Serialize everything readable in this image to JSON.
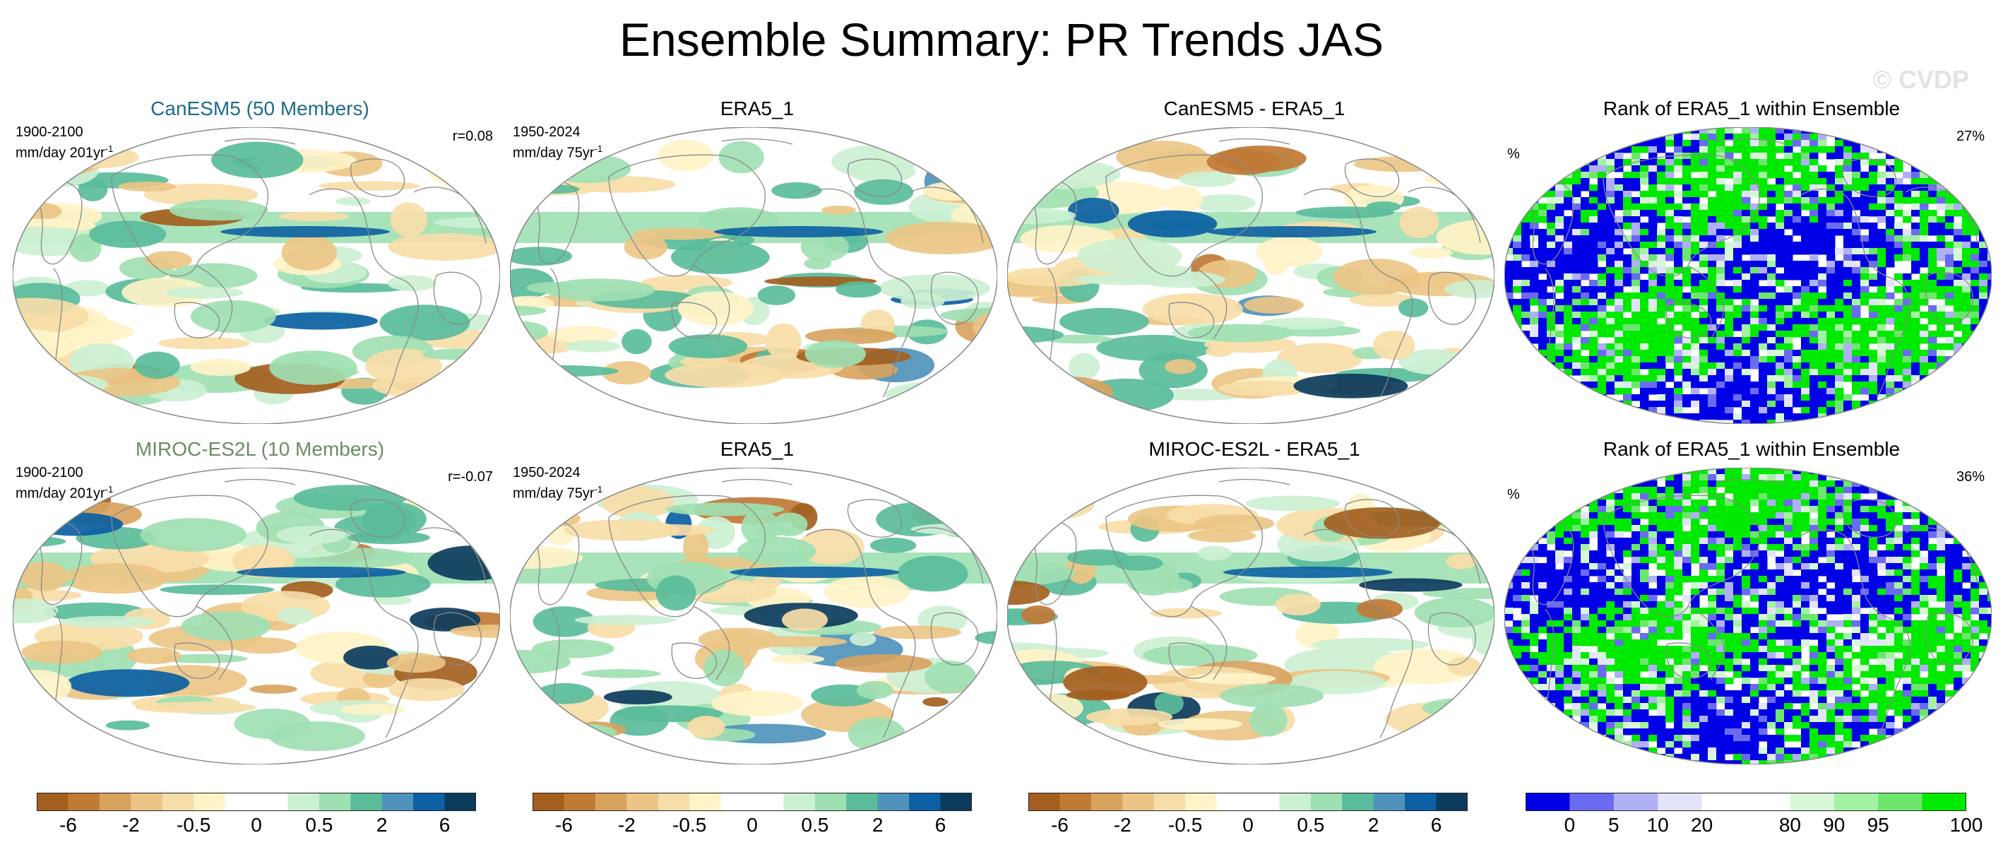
{
  "page_title": "Ensemble Summary: PR Trends JAS",
  "watermark": "© CVDP",
  "colors": {
    "canesm_title": "#1e6b8c",
    "miroc_title": "#6b8c62",
    "map_outline": "#888888",
    "coastline": "#8a8a8a"
  },
  "trend_scale_colors": [
    "#a35f1f",
    "#c07a36",
    "#d8a35f",
    "#ecc586",
    "#f7dda8",
    "#fff3c7",
    "#ffffff",
    "#ffffff",
    "#ccf0d2",
    "#9fe0b2",
    "#5abc9b",
    "#4f93bc",
    "#0b5fa2",
    "#0c3b5c"
  ],
  "rank_scale_colors": [
    "#0000e6",
    "#6b6bf2",
    "#b0b0f6",
    "#e3e3fb",
    "#ffffff",
    "#ffffff",
    "#d7f7d7",
    "#a3f2a3",
    "#6ce66c",
    "#00ea00"
  ],
  "rows": [
    {
      "panels": [
        {
          "title": "CanESM5 (50 Members)",
          "left_label_1": "1900-2100",
          "left_label_2": "mm/day 201yr",
          "superscript": "-1",
          "right_label": "r=0.08"
        },
        {
          "title": "ERA5_1",
          "left_label_1": "1950-2024",
          "left_label_2": "mm/day 75yr",
          "superscript": "-1",
          "right_label": ""
        },
        {
          "title": "CanESM5 - ERA5_1",
          "left_label_1": "",
          "left_label_2": "",
          "superscript": "",
          "right_label": ""
        },
        {
          "title": "Rank of ERA5_1 within Ensemble",
          "left_label_1": "",
          "left_label_2": "%",
          "superscript": "",
          "right_label": "27%"
        }
      ]
    },
    {
      "panels": [
        {
          "title": "MIROC-ES2L (10 Members)",
          "left_label_1": "1900-2100",
          "left_label_2": "mm/day 201yr",
          "superscript": "-1",
          "right_label": "r=-0.07"
        },
        {
          "title": "ERA5_1",
          "left_label_1": "1950-2024",
          "left_label_2": "mm/day 75yr",
          "superscript": "-1",
          "right_label": ""
        },
        {
          "title": "MIROC-ES2L - ERA5_1",
          "left_label_1": "",
          "left_label_2": "",
          "superscript": "",
          "right_label": ""
        },
        {
          "title": "Rank of ERA5_1 within Ensemble",
          "left_label_1": "",
          "left_label_2": "%",
          "superscript": "",
          "right_label": "36%"
        }
      ]
    }
  ],
  "chart_data": {
    "type": "heatmap",
    "title": "Ensemble Summary: PR Trends JAS",
    "projection": "Robinson (global)",
    "panels": [
      {
        "title": "CanESM5 (50 Members)",
        "period": "1900-2100",
        "units": "mm/day 201yr-1",
        "pattern_correlation": 0.08
      },
      {
        "title": "ERA5_1",
        "period": "1950-2024",
        "units": "mm/day 75yr-1"
      },
      {
        "title": "CanESM5 - ERA5_1"
      },
      {
        "title": "Rank of ERA5_1 within Ensemble",
        "units": "%",
        "summary_percent": 27
      },
      {
        "title": "MIROC-ES2L (10 Members)",
        "period": "1900-2100",
        "units": "mm/day 201yr-1",
        "pattern_correlation": -0.07
      },
      {
        "title": "ERA5_1",
        "period": "1950-2024",
        "units": "mm/day 75yr-1"
      },
      {
        "title": "MIROC-ES2L - ERA5_1"
      },
      {
        "title": "Rank of ERA5_1 within Ensemble",
        "units": "%",
        "summary_percent": 36
      }
    ],
    "colorbars": [
      {
        "name": "trend",
        "levels": 14,
        "tick_labels": [
          "-6",
          "-2",
          "-0.5",
          "0",
          "0.5",
          "2",
          "6"
        ]
      },
      {
        "name": "trend",
        "levels": 14,
        "tick_labels": [
          "-6",
          "-2",
          "-0.5",
          "0",
          "0.5",
          "2",
          "6"
        ]
      },
      {
        "name": "trend",
        "levels": 14,
        "tick_labels": [
          "-6",
          "-2",
          "-0.5",
          "0",
          "0.5",
          "2",
          "6"
        ]
      },
      {
        "name": "rank",
        "levels": 10,
        "tick_labels": [
          "0",
          "5",
          "10",
          "20",
          "80",
          "90",
          "95",
          "100"
        ]
      }
    ]
  }
}
